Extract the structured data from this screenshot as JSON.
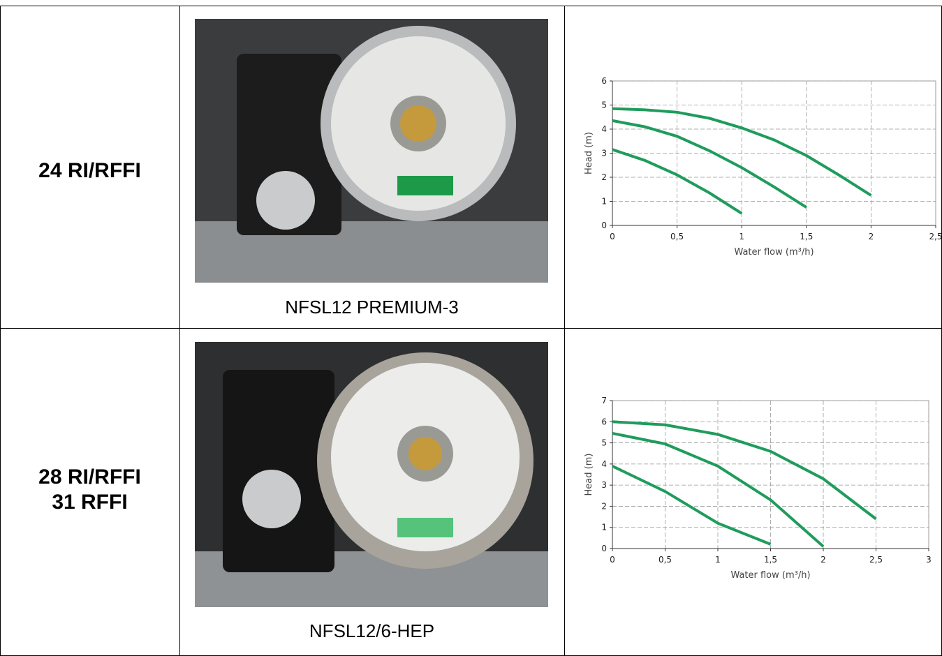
{
  "table": {
    "rows": [
      {
        "model_lines": [
          "24 RI/RFFI"
        ],
        "pump": "NFSL12 PREMIUM-3",
        "chart": {
          "type": "line",
          "x_label": "Water flow (m³/h)",
          "y_label": "Head (m)",
          "xlim": [
            0,
            2.5
          ],
          "ylim": [
            0,
            6
          ],
          "xticks": [
            0,
            {
              "value": 0.5,
              "label": "0,5"
            },
            1,
            {
              "value": 1.5,
              "label": "1,5"
            },
            2,
            {
              "value": 2.5,
              "label": "2,5"
            }
          ],
          "yticks": [
            0,
            1,
            2,
            3,
            4,
            5,
            6
          ],
          "grid": true,
          "series": [
            {
              "color": "#1f9c5c",
              "x": [
                0,
                0.25,
                0.5,
                0.75,
                1,
                1.25,
                1.5,
                1.75,
                2
              ],
              "values": [
                4.85,
                4.8,
                4.7,
                4.45,
                4.05,
                3.55,
                2.9,
                2.1,
                1.25
              ]
            },
            {
              "color": "#1f9c5c",
              "x": [
                0,
                0.25,
                0.5,
                0.75,
                1,
                1.25,
                1.5
              ],
              "values": [
                4.35,
                4.1,
                3.7,
                3.1,
                2.4,
                1.6,
                0.75
              ]
            },
            {
              "color": "#1f9c5c",
              "x": [
                0,
                0.25,
                0.5,
                0.75,
                1
              ],
              "values": [
                3.15,
                2.7,
                2.1,
                1.35,
                0.5
              ]
            }
          ]
        }
      },
      {
        "model_lines": [
          "28 RI/RFFI",
          "31 RFFI"
        ],
        "pump": "NFSL12/6-HEP",
        "chart": {
          "type": "line",
          "x_label": "Water flow (m³/h)",
          "y_label": "Head (m)",
          "xlim": [
            0,
            3
          ],
          "ylim": [
            0,
            7
          ],
          "xticks": [
            0,
            {
              "value": 0.5,
              "label": "0,5"
            },
            1,
            {
              "value": 1.5,
              "label": "1,5"
            },
            2,
            {
              "value": 2.5,
              "label": "2,5"
            },
            3
          ],
          "yticks": [
            0,
            1,
            2,
            3,
            4,
            5,
            6,
            7
          ],
          "grid": true,
          "series": [
            {
              "color": "#1f9c5c",
              "x": [
                0,
                0.5,
                1,
                1.5,
                2,
                2.5
              ],
              "values": [
                6,
                5.85,
                5.4,
                4.6,
                3.3,
                1.4
              ]
            },
            {
              "color": "#1f9c5c",
              "x": [
                0,
                0.5,
                1,
                1.5,
                2
              ],
              "values": [
                5.45,
                4.95,
                3.9,
                2.3,
                0.1
              ]
            },
            {
              "color": "#1f9c5c",
              "x": [
                0,
                0.5,
                1,
                1.5
              ],
              "values": [
                3.9,
                2.7,
                1.2,
                0.2
              ]
            }
          ]
        }
      }
    ]
  }
}
